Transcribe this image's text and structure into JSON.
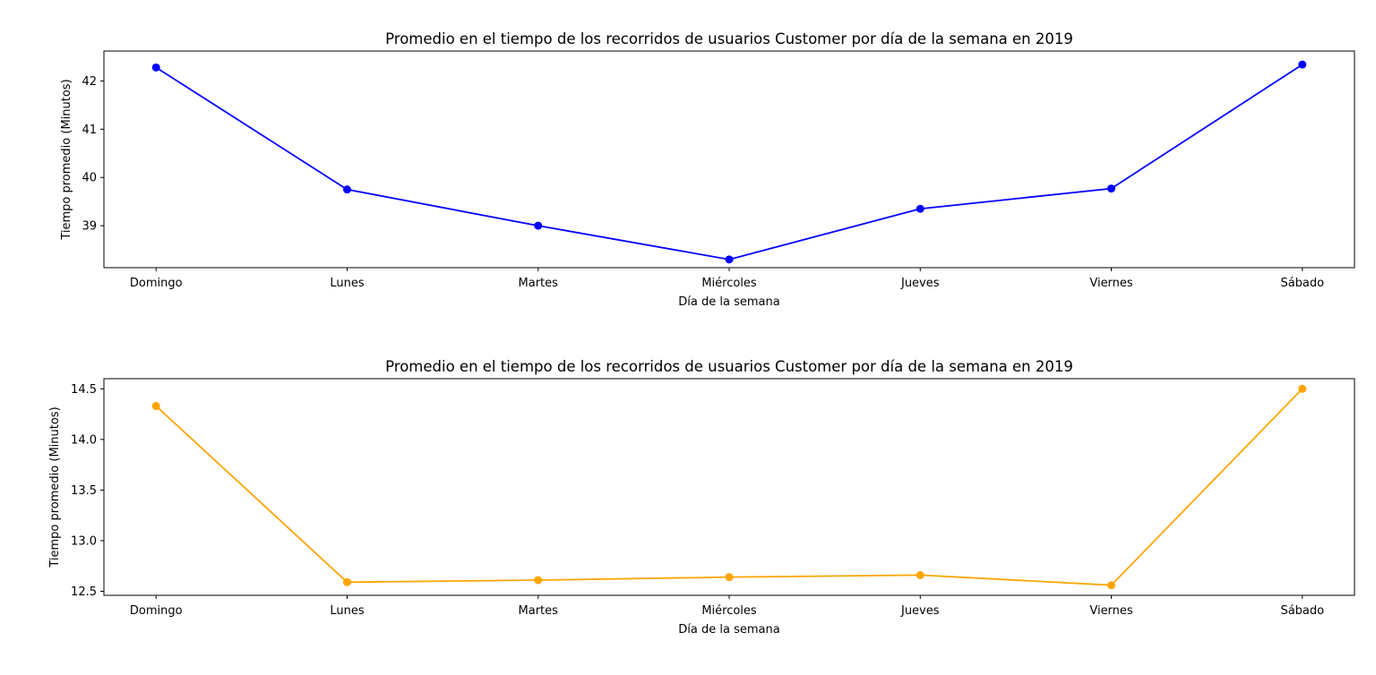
{
  "chart_data": [
    {
      "type": "line",
      "title": "Promedio en el tiempo de los recorridos de usuarios Customer por día de la semana en 2019",
      "xlabel": "Día de la semana",
      "ylabel": "Tiempo promedio (Minutos)",
      "categories": [
        "Domingo",
        "Lunes",
        "Martes",
        "Miércoles",
        "Jueves",
        "Viernes",
        "Sábado"
      ],
      "series": [
        {
          "values": [
            42.28,
            39.75,
            39.0,
            38.3,
            39.35,
            39.77,
            42.34
          ],
          "color": "#0000ff"
        }
      ],
      "ylim": [
        38.13,
        42.62
      ],
      "yticks": [
        39,
        40,
        41,
        42
      ],
      "ytick_labels": [
        "39",
        "40",
        "41",
        "42"
      ],
      "grid": false,
      "marker": "circle"
    },
    {
      "type": "line",
      "title": "Promedio en el tiempo de los recorridos de usuarios Customer por día de la semana en 2019",
      "xlabel": "Día de la semana",
      "ylabel": "Tiempo promedio (Minutos)",
      "categories": [
        "Domingo",
        "Lunes",
        "Martes",
        "Miércoles",
        "Jueves",
        "Viernes",
        "Sábado"
      ],
      "series": [
        {
          "values": [
            14.33,
            12.59,
            12.61,
            12.64,
            12.66,
            12.56,
            14.5
          ],
          "color": "#ffa500"
        }
      ],
      "ylim": [
        12.46,
        14.6
      ],
      "yticks": [
        12.5,
        13.0,
        13.5,
        14.0,
        14.5
      ],
      "ytick_labels": [
        "12.5",
        "13.0",
        "13.5",
        "14.0",
        "14.5"
      ],
      "grid": false,
      "marker": "circle"
    }
  ]
}
